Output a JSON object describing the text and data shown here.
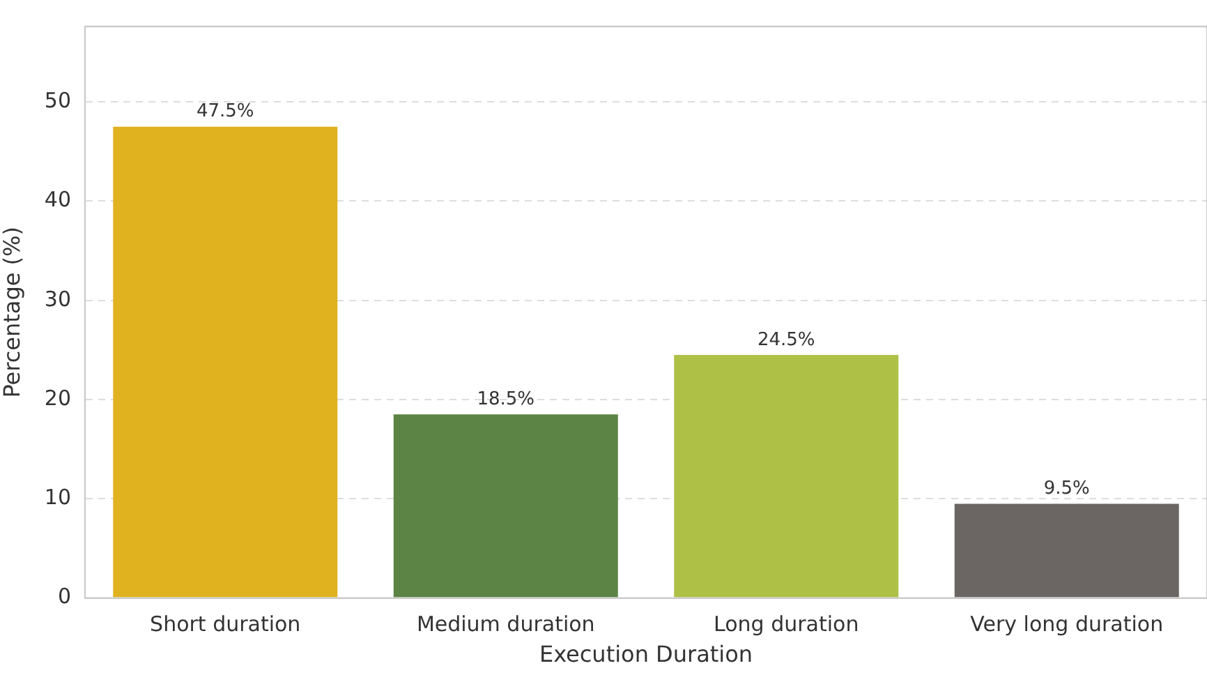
{
  "chart_data": {
    "type": "bar",
    "xlabel": "Execution Duration",
    "ylabel": "Percentage (%)",
    "categories": [
      "Short duration",
      "Medium duration",
      "Long duration",
      "Very long duration"
    ],
    "values": [
      47.5,
      18.5,
      24.5,
      9.5
    ],
    "colors": [
      "#e0b21f",
      "#5c8444",
      "#afc046",
      "#6b6663"
    ],
    "value_labels": [
      "47.5%",
      "18.5%",
      "24.5%",
      "9.5%"
    ],
    "ylim": [
      0,
      57.6
    ],
    "yticks": [
      0,
      10,
      20,
      30,
      40,
      50
    ],
    "grid": "y",
    "legend": false
  }
}
